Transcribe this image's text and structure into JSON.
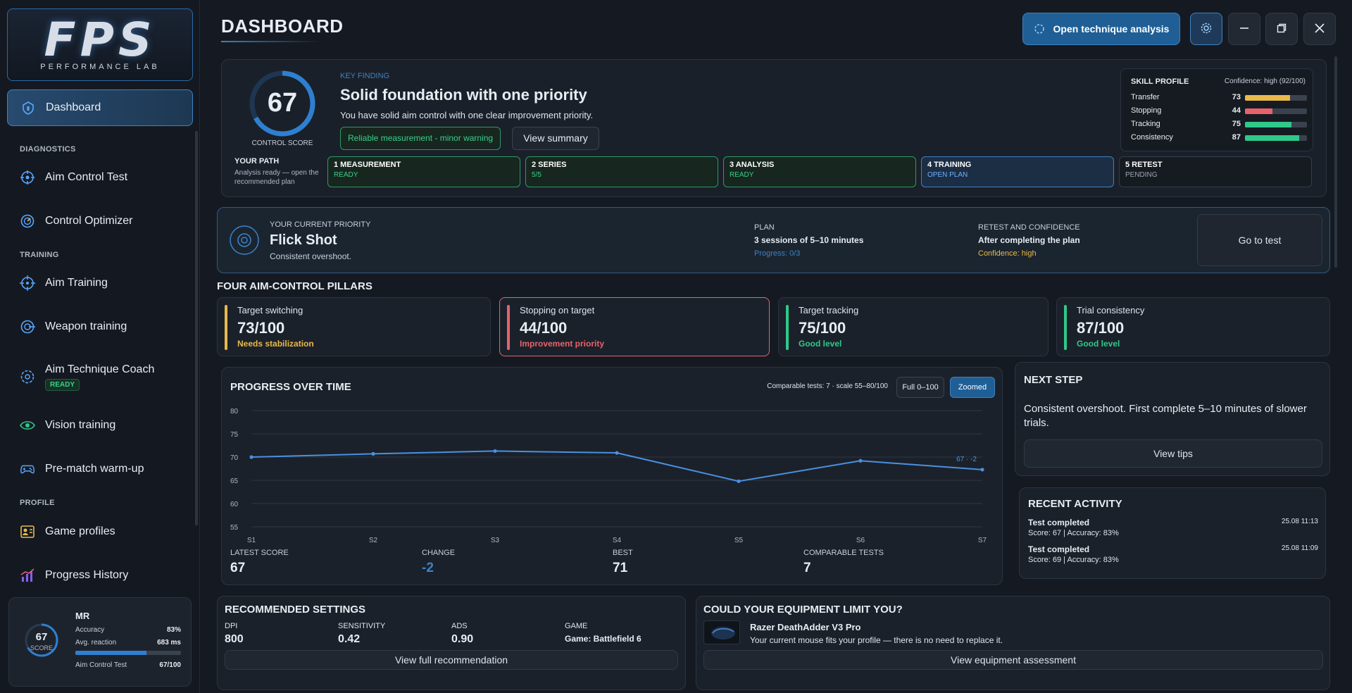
{
  "sidebar": {
    "logo_big": "FPS",
    "logo_small": "PERFORMANCE LAB",
    "dashboard": "Dashboard",
    "section_diagnostics": "DIAGNOSTICS",
    "aim_control_test": "Aim Control Test",
    "control_optimizer": "Control Optimizer",
    "section_training": "TRAINING",
    "aim_training": "Aim Training",
    "weapon_training": "Weapon training",
    "aim_technique_coach": "Aim Technique Coach",
    "coach_badge": "READY",
    "vision_training": "Vision training",
    "warmup": "Pre-match warm-up",
    "section_profile": "PROFILE",
    "game_profiles": "Game profiles",
    "progress_history": "Progress History",
    "profile": {
      "score": "67",
      "score_label": "SCORE",
      "name": "MR",
      "accuracy_label": "Accuracy",
      "accuracy_value": "83%",
      "reaction_label": "Avg. reaction",
      "reaction_value": "683 ms",
      "reaction_fill": 0.67,
      "test_label": "Aim Control Test",
      "test_value": "67/100"
    }
  },
  "header": {
    "title": "DASHBOARD",
    "open_analysis": "Open technique analysis"
  },
  "summary": {
    "score": "67",
    "score_fraction": 0.67,
    "score_caption": "CONTROL SCORE",
    "key_finding_label": "KEY FINDING",
    "headline": "Solid foundation with one priority",
    "description": "You have solid aim control with one clear improvement priority.",
    "badge": "Reliable measurement - minor warning",
    "view_summary": "View summary",
    "path_title": "YOUR PATH",
    "path_text": "Analysis ready — open the recommended plan",
    "steps": [
      {
        "title": "1 MEASUREMENT",
        "status": "READY"
      },
      {
        "title": "2 SERIES",
        "status": "5/5"
      },
      {
        "title": "3 ANALYSIS",
        "status": "READY"
      },
      {
        "title": "4 TRAINING",
        "status": "OPEN PLAN"
      },
      {
        "title": "5 RETEST",
        "status": "PENDING"
      }
    ],
    "skill_profile": {
      "title": "SKILL PROFILE",
      "confidence": "Confidence: high (92/100)",
      "rows": [
        {
          "label": "Transfer",
          "value": "73",
          "fill": 0.73,
          "color": "#e9b949"
        },
        {
          "label": "Stopping",
          "value": "44",
          "fill": 0.44,
          "color": "#e8626c"
        },
        {
          "label": "Tracking",
          "value": "75",
          "fill": 0.75,
          "color": "#2fc98a"
        },
        {
          "label": "Consistency",
          "value": "87",
          "fill": 0.87,
          "color": "#2fc98a"
        }
      ]
    }
  },
  "priority": {
    "label": "YOUR CURRENT PRIORITY",
    "name": "Flick Shot",
    "description": "Consistent overshoot.",
    "plan_label": "PLAN",
    "plan_value": "3 sessions of 5–10 minutes",
    "plan_progress": "Progress: 0/3",
    "retest_label": "RETEST AND CONFIDENCE",
    "retest_value": "After completing the plan",
    "retest_confidence": "Confidence: high",
    "go_to_test": "Go to test"
  },
  "pillars": {
    "title": "FOUR AIM-CONTROL PILLARS",
    "items": [
      {
        "name": "Target switching",
        "value": "73/100",
        "status": "Needs stabilization",
        "color": "#e9b949"
      },
      {
        "name": "Stopping on target",
        "value": "44/100",
        "status": "Improvement priority",
        "color": "#e8626c"
      },
      {
        "name": "Target tracking",
        "value": "75/100",
        "status": "Good level",
        "color": "#2fc98a"
      },
      {
        "name": "Trial consistency",
        "value": "87/100",
        "status": "Good level",
        "color": "#2fc98a"
      }
    ]
  },
  "progress": {
    "title": "PROGRESS OVER TIME",
    "meta": "Comparable tests: 7 · scale 55–80/100",
    "full_btn": "Full 0–100",
    "zoom_btn": "Zoomed",
    "latest_label": "LATEST SCORE",
    "latest_value": "67",
    "change_label": "CHANGE",
    "change_value": "-2",
    "best_label": "BEST",
    "best_value": "71",
    "comparable_label": "COMPARABLE TESTS",
    "comparable_value": "7"
  },
  "chart_data": {
    "type": "line",
    "categories": [
      "S1",
      "S2",
      "S3",
      "S4",
      "S5",
      "S6",
      "S7"
    ],
    "series": [
      {
        "values": [
          70,
          70.7,
          71.3,
          70.9,
          64.8,
          69.2,
          67.3
        ],
        "color": "#4a90e2"
      }
    ],
    "ylim": [
      55,
      80
    ],
    "yticks": [
      55,
      60,
      65,
      70,
      75,
      80
    ],
    "last_label": "67 · -2",
    "grid": true
  },
  "next_step": {
    "title": "NEXT STEP",
    "text": "Consistent overshoot. First complete 5–10 minutes of slower trials.",
    "button": "View tips"
  },
  "activity": {
    "title": "RECENT ACTIVITY",
    "items": [
      {
        "title": "Test completed",
        "detail": "Score: 67 | Accuracy: 83%",
        "time": "25.08 11:13"
      },
      {
        "title": "Test completed",
        "detail": "Score: 69 | Accuracy: 83%",
        "time": "25.08 11:09"
      }
    ]
  },
  "settings": {
    "title": "RECOMMENDED SETTINGS",
    "dpi_label": "DPI",
    "dpi_value": "800",
    "sens_label": "SENSITIVITY",
    "sens_value": "0.42",
    "ads_label": "ADS",
    "ads_value": "0.90",
    "game_label": "GAME",
    "game_value": "Game: Battlefield 6",
    "button": "View full recommendation"
  },
  "equipment": {
    "title": "COULD YOUR EQUIPMENT LIMIT YOU?",
    "mouse": "Razer DeathAdder V3 Pro",
    "text": "Your current mouse fits your profile — there is no need to replace it.",
    "button": "View equipment assessment"
  }
}
